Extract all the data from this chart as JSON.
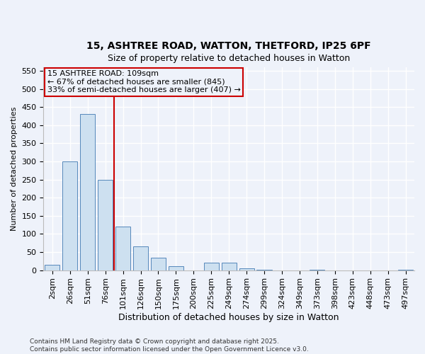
{
  "title_line1": "15, ASHTREE ROAD, WATTON, THETFORD, IP25 6PF",
  "title_line2": "Size of property relative to detached houses in Watton",
  "xlabel": "Distribution of detached houses by size in Watton",
  "ylabel": "Number of detached properties",
  "categories": [
    "2sqm",
    "26sqm",
    "51sqm",
    "76sqm",
    "101sqm",
    "126sqm",
    "150sqm",
    "175sqm",
    "200sqm",
    "225sqm",
    "249sqm",
    "274sqm",
    "299sqm",
    "324sqm",
    "349sqm",
    "373sqm",
    "398sqm",
    "423sqm",
    "448sqm",
    "473sqm",
    "497sqm"
  ],
  "values": [
    15,
    300,
    430,
    250,
    120,
    65,
    35,
    10,
    0,
    20,
    20,
    5,
    1,
    0,
    0,
    1,
    0,
    0,
    0,
    0,
    1
  ],
  "bar_color": "#cde0f0",
  "bar_edge_color": "#5588bb",
  "vline_index": 4,
  "property_line_label": "15 ASHTREE ROAD: 109sqm",
  "annotation_smaller": "← 67% of detached houses are smaller (845)",
  "annotation_larger": "33% of semi-detached houses are larger (407) →",
  "ylim": [
    0,
    560
  ],
  "yticks": [
    0,
    50,
    100,
    150,
    200,
    250,
    300,
    350,
    400,
    450,
    500,
    550
  ],
  "vline_color": "#cc0000",
  "box_edge_color": "#cc0000",
  "footnote1": "Contains HM Land Registry data © Crown copyright and database right 2025.",
  "footnote2": "Contains public sector information licensed under the Open Government Licence v3.0.",
  "bg_color": "#eef2fa",
  "grid_color": "#ffffff",
  "title_fontsize": 10,
  "subtitle_fontsize": 9,
  "xlabel_fontsize": 9,
  "ylabel_fontsize": 8,
  "tick_fontsize": 8,
  "annot_fontsize": 8,
  "footnote_fontsize": 6.5
}
